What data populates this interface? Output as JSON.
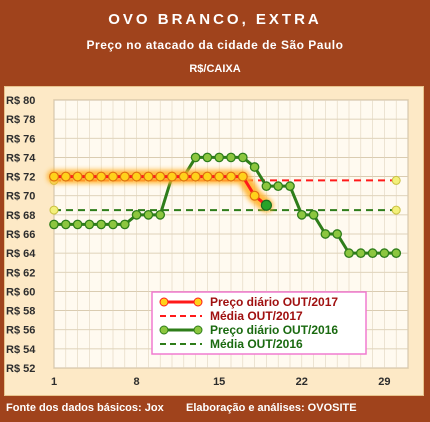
{
  "header": {
    "title": "OVO BRANCO, EXTRA",
    "subtitle": "Preço no atacado da cidade de São Paulo",
    "unit": "R$/CAIXA"
  },
  "footer": {
    "source": "Fonte dos dados básicos: Jox",
    "credit": "Elaboração e análises: OVOSITE"
  },
  "colors": {
    "frame": "#a0431c",
    "plot_bg": "#fde9c6",
    "red_series": "#ff1a1a",
    "red_glow": "#ffb22a",
    "red_marker": "#ffd21a",
    "green_series": "#2e7d1a",
    "green_marker": "#8cc63f",
    "legend_border": "#f07ad0"
  },
  "chart_data": {
    "type": "line",
    "title": "OVO BRANCO, EXTRA",
    "subtitle": "Preço no atacado da cidade de São Paulo",
    "ylabel": "R$/CAIXA",
    "xlabel": "",
    "xlim": [
      1,
      31
    ],
    "ylim": [
      52,
      80
    ],
    "x_ticks": [
      1,
      8,
      15,
      22,
      29
    ],
    "y_ticks": [
      52,
      54,
      56,
      58,
      60,
      62,
      64,
      66,
      68,
      70,
      72,
      74,
      76,
      78,
      80
    ],
    "y_tick_prefix": "R$ ",
    "grid": true,
    "legend_placement": "bottom-center",
    "series": [
      {
        "name": "Preço diário OUT/2017",
        "kind": "line-markers",
        "x": [
          1,
          2,
          3,
          4,
          5,
          6,
          7,
          8,
          9,
          10,
          11,
          12,
          13,
          14,
          15,
          16,
          17,
          18,
          19
        ],
        "values": [
          72,
          72,
          72,
          72,
          72,
          72,
          72,
          72,
          72,
          72,
          72,
          72,
          72,
          72,
          72,
          72,
          72,
          70,
          69
        ]
      },
      {
        "name": "Média OUT/2017",
        "kind": "dashed",
        "x": [
          1,
          30
        ],
        "values": [
          71.6,
          71.6
        ]
      },
      {
        "name": "Preço diário OUT/2016",
        "kind": "line-markers",
        "x": [
          1,
          2,
          3,
          4,
          5,
          6,
          7,
          8,
          9,
          10,
          11,
          12,
          13,
          14,
          15,
          16,
          17,
          18,
          19,
          20,
          21,
          22,
          23,
          24,
          25,
          26,
          27,
          28,
          29,
          30
        ],
        "values": [
          67,
          67,
          67,
          67,
          67,
          67,
          67,
          68,
          68,
          68,
          72,
          72,
          74,
          74,
          74,
          74,
          74,
          73,
          71,
          71,
          71,
          68,
          68,
          66,
          66,
          64,
          64,
          64,
          64,
          64
        ]
      },
      {
        "name": "Média OUT/2016",
        "kind": "dashed",
        "x": [
          1,
          30
        ],
        "values": [
          68.5,
          68.5
        ]
      }
    ]
  }
}
